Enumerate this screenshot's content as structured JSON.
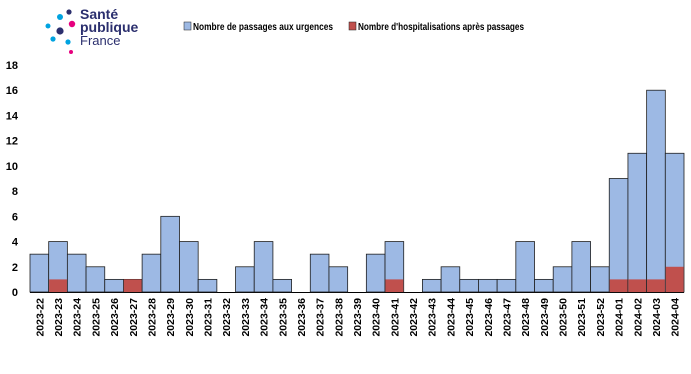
{
  "logo": {
    "line1": "Santé",
    "line2": "publique",
    "line3": "France",
    "colors": [
      "#e6007e",
      "#00a3e0",
      "#2b2f6e"
    ]
  },
  "chart_data": {
    "type": "bar",
    "stacked": true,
    "categories": [
      "2023-22",
      "2023-23",
      "2023-24",
      "2023-25",
      "2023-26",
      "2023-27",
      "2023-28",
      "2023-29",
      "2023-30",
      "2023-31",
      "2023-32",
      "2023-33",
      "2023-34",
      "2023-35",
      "2023-36",
      "2023-37",
      "2023-38",
      "2023-39",
      "2023-40",
      "2023-41",
      "2023-42",
      "2023-43",
      "2023-44",
      "2023-45",
      "2023-46",
      "2023-47",
      "2023-48",
      "2023-49",
      "2023-50",
      "2023-51",
      "2023-52",
      "2024-01",
      "2024-02",
      "2024-03",
      "2024-04"
    ],
    "series": [
      {
        "name": "Nombre de passages aux urgences",
        "color": "#9db9e4",
        "values": [
          3,
          4,
          3,
          2,
          1,
          1,
          3,
          6,
          4,
          1,
          0,
          2,
          4,
          1,
          0,
          3,
          2,
          0,
          3,
          4,
          0,
          1,
          2,
          1,
          1,
          1,
          4,
          1,
          2,
          4,
          2,
          9,
          11,
          16,
          11
        ]
      },
      {
        "name": "Nombre d'hospitalisations après passages",
        "color": "#c0504d",
        "values": [
          0,
          1,
          0,
          0,
          0,
          1,
          0,
          0,
          0,
          0,
          0,
          0,
          0,
          0,
          0,
          0,
          0,
          0,
          0,
          1,
          0,
          0,
          0,
          0,
          0,
          0,
          0,
          0,
          0,
          0,
          0,
          1,
          1,
          1,
          2
        ]
      }
    ],
    "ylim": [
      0,
      18
    ],
    "yticks": [
      0,
      2,
      4,
      6,
      8,
      10,
      12,
      14,
      16,
      18
    ],
    "legend_position": "top",
    "grid": false
  }
}
